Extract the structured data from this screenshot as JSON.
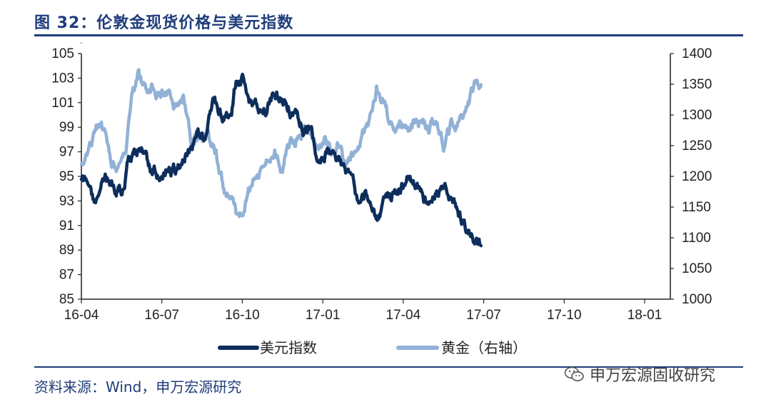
{
  "header": {
    "title": "图 32：伦敦金现货价格与美元指数"
  },
  "footer": {
    "source": "资料来源：Wind，申万宏源研究"
  },
  "watermark": {
    "text": "申万宏源固收研究",
    "icon": "wechat-icon"
  },
  "colors": {
    "brand": "#1f3d7a",
    "usd": "#0d2e5c",
    "gold": "#92b1d6"
  },
  "chart_data": {
    "type": "line",
    "title": "伦敦金现货价格与美元指数",
    "x_tick_labels": [
      "16-04",
      "16-07",
      "16-10",
      "17-01",
      "17-04",
      "17-07",
      "17-10",
      "18-01"
    ],
    "left_axis": {
      "min": 85,
      "max": 105,
      "ticks": [
        85,
        87,
        89,
        91,
        93,
        95,
        97,
        99,
        101,
        103,
        105
      ]
    },
    "right_axis": {
      "min": 1000,
      "max": 1400,
      "ticks": [
        1000,
        1050,
        1100,
        1150,
        1200,
        1250,
        1300,
        1350,
        1400
      ]
    },
    "legend_placement": "bottom",
    "series": [
      {
        "name": "美元指数",
        "axis": "left",
        "anchors": [
          {
            "t": 0.0,
            "v": 95.0
          },
          {
            "t": 0.25,
            "v": 94.5
          },
          {
            "t": 0.55,
            "v": 93.0
          },
          {
            "t": 0.9,
            "v": 95.0
          },
          {
            "t": 1.3,
            "v": 94.0
          },
          {
            "t": 1.6,
            "v": 93.8
          },
          {
            "t": 1.75,
            "v": 96.0
          },
          {
            "t": 2.4,
            "v": 97.0
          },
          {
            "t": 2.6,
            "v": 95.5
          },
          {
            "t": 2.9,
            "v": 95.0
          },
          {
            "t": 3.2,
            "v": 96.0
          },
          {
            "t": 3.4,
            "v": 95.5
          },
          {
            "t": 3.7,
            "v": 95.7
          },
          {
            "t": 4.0,
            "v": 97.0
          },
          {
            "t": 4.3,
            "v": 98.7
          },
          {
            "t": 4.6,
            "v": 98.0
          },
          {
            "t": 4.9,
            "v": 101.0
          },
          {
            "t": 5.3,
            "v": 100.0
          },
          {
            "t": 5.6,
            "v": 101.0
          },
          {
            "t": 5.75,
            "v": 103.0
          },
          {
            "t": 6.0,
            "v": 103.0
          },
          {
            "t": 6.3,
            "v": 101.0
          },
          {
            "t": 6.7,
            "v": 100.0
          },
          {
            "t": 7.0,
            "v": 101.2
          },
          {
            "t": 7.4,
            "v": 101.5
          },
          {
            "t": 7.8,
            "v": 100.5
          },
          {
            "t": 8.3,
            "v": 99.0
          },
          {
            "t": 8.6,
            "v": 99.0
          },
          {
            "t": 8.75,
            "v": 97.0
          },
          {
            "t": 9.2,
            "v": 97.0
          },
          {
            "t": 9.6,
            "v": 96.5
          },
          {
            "t": 10.0,
            "v": 95.0
          },
          {
            "t": 10.3,
            "v": 93.0
          },
          {
            "t": 10.6,
            "v": 93.5
          },
          {
            "t": 11.0,
            "v": 91.7
          },
          {
            "t": 11.3,
            "v": 92.5
          },
          {
            "t": 11.6,
            "v": 93.5
          },
          {
            "t": 11.9,
            "v": 93.8
          },
          {
            "t": 12.2,
            "v": 95.0
          },
          {
            "t": 12.5,
            "v": 94.5
          },
          {
            "t": 12.8,
            "v": 93.0
          },
          {
            "t": 13.2,
            "v": 93.5
          },
          {
            "t": 13.5,
            "v": 94.0
          },
          {
            "t": 13.8,
            "v": 93.0
          },
          {
            "t": 14.1,
            "v": 92.0
          },
          {
            "t": 14.4,
            "v": 90.5
          },
          {
            "t": 14.7,
            "v": 89.5
          },
          {
            "t": 14.9,
            "v": 89.2
          }
        ]
      },
      {
        "name": "黄金（右轴）",
        "axis": "right",
        "anchors": [
          {
            "t": 0.0,
            "v": 1220
          },
          {
            "t": 0.3,
            "v": 1240
          },
          {
            "t": 0.55,
            "v": 1280
          },
          {
            "t": 0.9,
            "v": 1270
          },
          {
            "t": 1.15,
            "v": 1230
          },
          {
            "t": 1.4,
            "v": 1215
          },
          {
            "t": 1.7,
            "v": 1260
          },
          {
            "t": 1.9,
            "v": 1320
          },
          {
            "t": 2.1,
            "v": 1365
          },
          {
            "t": 2.4,
            "v": 1340
          },
          {
            "t": 2.7,
            "v": 1350
          },
          {
            "t": 2.9,
            "v": 1340
          },
          {
            "t": 3.2,
            "v": 1335
          },
          {
            "t": 3.5,
            "v": 1320
          },
          {
            "t": 3.8,
            "v": 1330
          },
          {
            "t": 4.1,
            "v": 1260
          },
          {
            "t": 4.4,
            "v": 1265
          },
          {
            "t": 4.7,
            "v": 1270
          },
          {
            "t": 5.0,
            "v": 1240
          },
          {
            "t": 5.3,
            "v": 1180
          },
          {
            "t": 5.6,
            "v": 1165
          },
          {
            "t": 5.85,
            "v": 1130
          },
          {
            "t": 6.1,
            "v": 1150
          },
          {
            "t": 6.4,
            "v": 1200
          },
          {
            "t": 6.8,
            "v": 1210
          },
          {
            "t": 7.2,
            "v": 1240
          },
          {
            "t": 7.5,
            "v": 1215
          },
          {
            "t": 7.8,
            "v": 1250
          },
          {
            "t": 8.2,
            "v": 1260
          },
          {
            "t": 8.5,
            "v": 1280
          },
          {
            "t": 8.8,
            "v": 1245
          },
          {
            "t": 9.1,
            "v": 1260
          },
          {
            "t": 9.3,
            "v": 1245
          },
          {
            "t": 9.6,
            "v": 1255
          },
          {
            "t": 9.9,
            "v": 1215
          },
          {
            "t": 10.2,
            "v": 1240
          },
          {
            "t": 10.5,
            "v": 1270
          },
          {
            "t": 10.8,
            "v": 1300
          },
          {
            "t": 11.0,
            "v": 1345
          },
          {
            "t": 11.3,
            "v": 1320
          },
          {
            "t": 11.6,
            "v": 1280
          },
          {
            "t": 11.9,
            "v": 1290
          },
          {
            "t": 12.2,
            "v": 1275
          },
          {
            "t": 12.6,
            "v": 1285
          },
          {
            "t": 12.9,
            "v": 1280
          },
          {
            "t": 13.2,
            "v": 1290
          },
          {
            "t": 13.5,
            "v": 1250
          },
          {
            "t": 13.8,
            "v": 1280
          },
          {
            "t": 14.1,
            "v": 1300
          },
          {
            "t": 14.4,
            "v": 1325
          },
          {
            "t": 14.7,
            "v": 1350
          },
          {
            "t": 14.9,
            "v": 1340
          }
        ]
      }
    ]
  }
}
